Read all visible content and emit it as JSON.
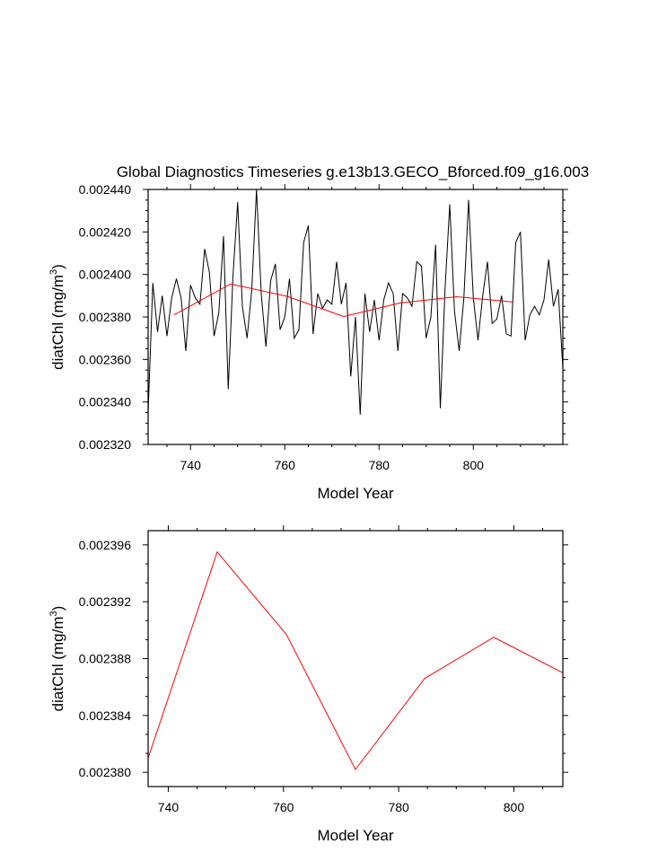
{
  "title": "Global Diagnostics Timeseries g.e13b13.GECO_Bforced.f09_g16.003",
  "chart_data": [
    {
      "type": "line",
      "xlabel": "Model Year",
      "ylabel": "diatChl (mg/m",
      "ylabel_sup": "3",
      "ylabel_close": ")",
      "xlim": [
        731,
        819
      ],
      "ylim": [
        0.00232,
        0.00244
      ],
      "xticks": [
        740,
        760,
        780,
        800
      ],
      "yticks": [
        "0.002320",
        "0.002340",
        "0.002360",
        "0.002380",
        "0.002400",
        "0.002420",
        "0.002440"
      ],
      "series": [
        {
          "color": "#000000",
          "x": [
            731,
            732,
            733,
            734,
            735,
            736,
            737,
            738,
            739,
            740,
            741,
            742,
            743,
            744,
            745,
            746,
            747,
            748,
            749,
            750,
            751,
            752,
            753,
            754,
            755,
            756,
            757,
            758,
            759,
            760,
            761,
            762,
            763,
            764,
            765,
            766,
            767,
            768,
            769,
            770,
            771,
            772,
            773,
            774,
            775,
            776,
            777,
            778,
            779,
            780,
            781,
            782,
            783,
            784,
            785,
            786,
            787,
            788,
            789,
            790,
            791,
            792,
            793,
            794,
            795,
            796,
            797,
            798,
            799,
            800,
            801,
            802,
            803,
            804,
            805,
            806,
            807,
            808,
            809,
            810,
            811,
            812,
            813,
            814,
            815,
            816,
            817,
            818,
            819
          ],
          "y": [
            0.002335,
            0.002396,
            0.002373,
            0.00239,
            0.002371,
            0.002389,
            0.002398,
            0.002389,
            0.002364,
            0.002395,
            0.002389,
            0.002386,
            0.002412,
            0.002401,
            0.002371,
            0.002382,
            0.002418,
            0.002346,
            0.002399,
            0.002434,
            0.002385,
            0.00237,
            0.002393,
            0.00244,
            0.002391,
            0.002366,
            0.002397,
            0.002405,
            0.002374,
            0.00238,
            0.002398,
            0.00237,
            0.002374,
            0.002415,
            0.002423,
            0.002372,
            0.002391,
            0.002384,
            0.002388,
            0.002386,
            0.002406,
            0.002386,
            0.002396,
            0.002352,
            0.00238,
            0.002334,
            0.002391,
            0.002373,
            0.002388,
            0.002369,
            0.002388,
            0.002396,
            0.002391,
            0.002364,
            0.002391,
            0.002389,
            0.002385,
            0.002406,
            0.002404,
            0.00237,
            0.00238,
            0.002414,
            0.002337,
            0.002393,
            0.002433,
            0.002383,
            0.002364,
            0.002389,
            0.002435,
            0.002389,
            0.002369,
            0.00239,
            0.002406,
            0.002377,
            0.002379,
            0.00239,
            0.002372,
            0.002371,
            0.002415,
            0.00242,
            0.002369,
            0.002381,
            0.002385,
            0.002381,
            0.002388,
            0.002407,
            0.002385,
            0.002393,
            0.002356
          ]
        },
        {
          "color": "#ff0000",
          "x": [
            736.5,
            748.5,
            760.5,
            772.5,
            784.5,
            796.5,
            808.5
          ],
          "y": [
            0.002381,
            0.0023955,
            0.0023897,
            0.0023802,
            0.0023866,
            0.0023895,
            0.002387
          ]
        }
      ]
    },
    {
      "type": "line",
      "xlabel": "Model Year",
      "ylabel": "diatChl (mg/m",
      "ylabel_sup": "3",
      "ylabel_close": ")",
      "xlim": [
        736.5,
        808.5
      ],
      "ylim": [
        0.002379,
        0.002397
      ],
      "xticks": [
        740,
        760,
        780,
        800
      ],
      "yticks": [
        "0.002380",
        "0.002384",
        "0.002388",
        "0.002392",
        "0.002396"
      ],
      "series": [
        {
          "color": "#ff0000",
          "x": [
            736.5,
            748.5,
            760.5,
            772.5,
            784.5,
            796.5,
            808.5
          ],
          "y": [
            0.002381,
            0.0023955,
            0.0023897,
            0.0023802,
            0.0023866,
            0.0023895,
            0.002387
          ]
        }
      ]
    }
  ]
}
